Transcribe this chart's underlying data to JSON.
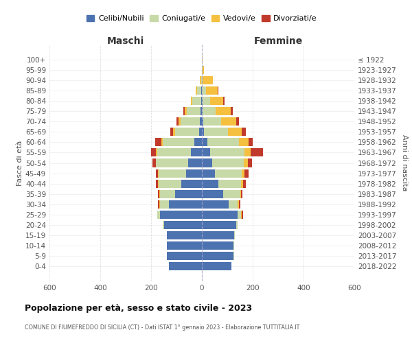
{
  "age_groups": [
    "0-4",
    "5-9",
    "10-14",
    "15-19",
    "20-24",
    "25-29",
    "30-34",
    "35-39",
    "40-44",
    "45-49",
    "50-54",
    "55-59",
    "60-64",
    "65-69",
    "70-74",
    "75-79",
    "80-84",
    "85-89",
    "90-94",
    "95-99",
    "100+"
  ],
  "birth_years": [
    "2018-2022",
    "2013-2017",
    "2008-2012",
    "2003-2007",
    "1998-2002",
    "1993-1997",
    "1988-1992",
    "1983-1987",
    "1978-1982",
    "1973-1977",
    "1968-1972",
    "1963-1967",
    "1958-1962",
    "1953-1957",
    "1948-1952",
    "1943-1947",
    "1938-1942",
    "1933-1937",
    "1928-1932",
    "1923-1927",
    "≤ 1922"
  ],
  "maschi": {
    "celibi": [
      130,
      138,
      138,
      138,
      150,
      165,
      130,
      105,
      80,
      62,
      55,
      42,
      30,
      10,
      8,
      5,
      3,
      2,
      0,
      0,
      0
    ],
    "coniugati": [
      0,
      0,
      0,
      0,
      5,
      12,
      35,
      60,
      90,
      108,
      125,
      135,
      125,
      95,
      75,
      55,
      35,
      18,
      4,
      0,
      0
    ],
    "vedovi": [
      0,
      0,
      0,
      0,
      0,
      0,
      2,
      2,
      2,
      2,
      2,
      3,
      5,
      8,
      10,
      8,
      5,
      5,
      3,
      0,
      0
    ],
    "divorziati": [
      0,
      0,
      0,
      0,
      0,
      0,
      5,
      5,
      8,
      10,
      12,
      20,
      25,
      12,
      8,
      5,
      0,
      0,
      0,
      0,
      0
    ]
  },
  "femmine": {
    "nubili": [
      115,
      125,
      125,
      128,
      135,
      140,
      105,
      85,
      65,
      50,
      40,
      32,
      22,
      8,
      5,
      3,
      2,
      1,
      0,
      0,
      0
    ],
    "coniugate": [
      0,
      2,
      2,
      2,
      5,
      15,
      35,
      65,
      90,
      108,
      125,
      135,
      125,
      95,
      70,
      50,
      30,
      15,
      4,
      2,
      0
    ],
    "vedove": [
      0,
      0,
      0,
      0,
      0,
      2,
      5,
      5,
      8,
      10,
      15,
      25,
      38,
      55,
      60,
      60,
      52,
      45,
      38,
      5,
      2
    ],
    "divorziate": [
      0,
      0,
      0,
      0,
      0,
      5,
      5,
      5,
      10,
      15,
      18,
      48,
      15,
      15,
      10,
      8,
      5,
      5,
      0,
      0,
      0
    ]
  },
  "colors": {
    "celibi_nubili": "#4c72b0",
    "coniugati": "#c8d9a8",
    "vedovi": "#f5c040",
    "divorziati": "#c0392b"
  },
  "title": "Popolazione per età, sesso e stato civile - 2023",
  "subtitle": "COMUNE DI FIUMEFREDDO DI SICILIA (CT) - Dati ISTAT 1° gennaio 2023 - Elaborazione TUTTITALIA.IT",
  "xlabel_left": "Maschi",
  "xlabel_right": "Femmine",
  "ylabel_left": "Fasce di età",
  "ylabel_right": "Anni di nascita",
  "xlim": 600,
  "background_color": "#ffffff",
  "grid_color": "#cccccc"
}
